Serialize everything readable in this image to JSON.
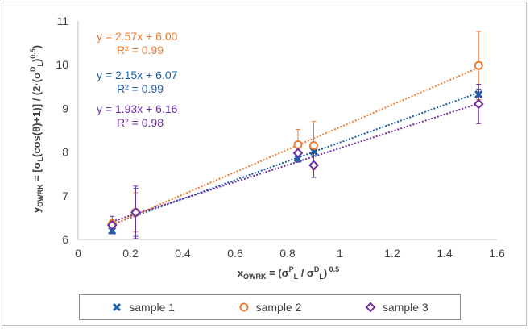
{
  "chart_data": {
    "type": "scatter",
    "xlim": [
      0,
      1.6
    ],
    "ylim": [
      6,
      11
    ],
    "x_ticks": [
      "0",
      "0.2",
      "0.4",
      "0.6",
      "0.8",
      "1",
      "1.2",
      "1.4",
      "1.6"
    ],
    "y_ticks": [
      "6",
      "7",
      "8",
      "9",
      "10",
      "11"
    ],
    "grid": "none",
    "legend_position": "bottom",
    "series": [
      {
        "name": "sample 1",
        "marker": "x",
        "color": "#1f5fa8",
        "x": [
          0.13,
          0.22,
          0.84,
          0.9,
          1.53
        ],
        "y": [
          6.2,
          6.62,
          7.85,
          8.02,
          9.32
        ],
        "err": [
          0.05,
          0.55,
          0.08,
          0.1,
          0.12
        ],
        "trendline": {
          "slope": 2.15,
          "intercept": 6.07
        },
        "equation": "y = 2.15x + 6.07",
        "r2": "R² = 0.99"
      },
      {
        "name": "sample 2",
        "marker": "circle",
        "color": "#ed7d31",
        "x": [
          0.13,
          0.22,
          0.84,
          0.9,
          1.53
        ],
        "y": [
          6.35,
          6.62,
          8.17,
          8.15,
          9.98
        ],
        "err": [
          0.1,
          0.45,
          0.35,
          0.55,
          0.78
        ],
        "trendline": {
          "slope": 2.57,
          "intercept": 6.0
        },
        "equation": "y = 2.57x + 6.00",
        "r2": "R² = 0.99"
      },
      {
        "name": "sample 3",
        "marker": "diamond",
        "color": "#7030a0",
        "x": [
          0.13,
          0.22,
          0.84,
          0.9,
          1.53
        ],
        "y": [
          6.33,
          6.62,
          7.98,
          7.7,
          9.1
        ],
        "err": [
          0.2,
          0.6,
          0.2,
          0.28,
          0.45
        ],
        "trendline": {
          "slope": 1.93,
          "intercept": 6.16
        },
        "equation": "y = 1.93x + 6.16",
        "r2": "R² = 0.98"
      }
    ]
  }
}
